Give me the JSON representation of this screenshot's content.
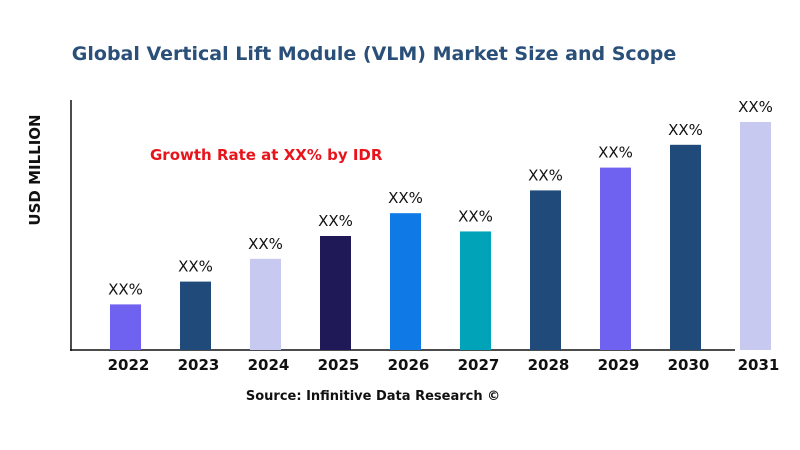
{
  "chart_data": {
    "type": "bar",
    "title": "Global Vertical Lift Module (VLM)  Market Size and Scope",
    "ylabel": "USD MILLION",
    "xlabel": "",
    "annotation": "Growth Rate at XX% by IDR",
    "source": "Source: Infinitive Data Research ©",
    "categories": [
      "2022",
      "2023",
      "2024",
      "2025",
      "2026",
      "2027",
      "2028",
      "2029",
      "2030",
      "2031"
    ],
    "values": [
      2.0,
      3.0,
      4.0,
      5.0,
      6.0,
      5.2,
      7.0,
      8.0,
      9.0,
      10.0
    ],
    "data_labels": [
      "XX%",
      "XX%",
      "XX%",
      "XX%",
      "XX%",
      "XX%",
      "XX%",
      "XX%",
      "XX%",
      "XX%"
    ],
    "colors": [
      "#7062f0",
      "#1f4a7a",
      "#c8c9f0",
      "#1f1a57",
      "#0f7ae5",
      "#00a3b8",
      "#1f4a7a",
      "#7062f0",
      "#1f4a7a",
      "#c8c9f0"
    ],
    "ylim": [
      0,
      11
    ],
    "grid": false,
    "legend": "none",
    "title_color": "#2a4f78",
    "annotation_color": "#e8141b"
  }
}
